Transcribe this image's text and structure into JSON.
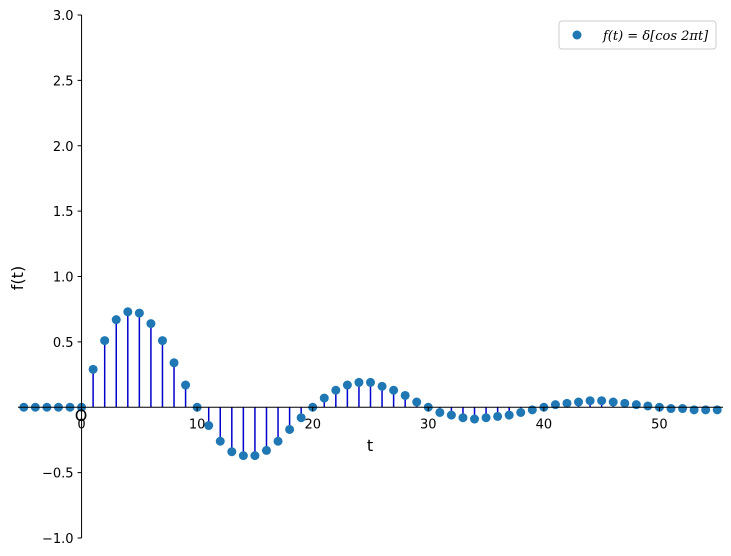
{
  "chart_data": {
    "type": "scatter",
    "xlabel": "t",
    "ylabel": "f(t)",
    "xlim": [
      -5.5,
      55.5
    ],
    "ylim": [
      -1.0,
      3.0
    ],
    "xticks": [
      0,
      10,
      20,
      30,
      40,
      50
    ],
    "yticks": [
      -1.0,
      -0.5,
      0.5,
      1.0,
      1.5,
      2.0,
      2.5,
      3.0
    ],
    "ytick_labels": [
      "−1.0",
      "−0.5",
      "0.5",
      "1.0",
      "1.5",
      "2.0",
      "2.5",
      "3.0"
    ],
    "origin_label": "O",
    "grid": false,
    "legend_position": "top-right",
    "series": [
      {
        "name": "f(t) = δ[cos 2πt]",
        "color": "#1f77b4",
        "stem_color": "#0000cc",
        "x": [
          -5,
          -4,
          -3,
          -2,
          -1,
          0,
          1,
          2,
          3,
          4,
          5,
          6,
          7,
          8,
          9,
          10,
          11,
          12,
          13,
          14,
          15,
          16,
          17,
          18,
          19,
          20,
          21,
          22,
          23,
          24,
          25,
          26,
          27,
          28,
          29,
          30,
          31,
          32,
          33,
          34,
          35,
          36,
          37,
          38,
          39,
          40,
          41,
          42,
          43,
          44,
          45,
          46,
          47,
          48,
          49,
          50,
          51,
          52,
          53,
          54,
          55
        ],
        "y": [
          0,
          0,
          0,
          0,
          0,
          0,
          0.29,
          0.51,
          0.67,
          0.73,
          0.72,
          0.64,
          0.51,
          0.34,
          0.17,
          0,
          -0.14,
          -0.26,
          -0.34,
          -0.37,
          -0.37,
          -0.33,
          -0.26,
          -0.17,
          -0.08,
          0,
          0.07,
          0.13,
          0.17,
          0.19,
          0.19,
          0.16,
          0.13,
          0.09,
          0.04,
          0,
          -0.04,
          -0.06,
          -0.08,
          -0.09,
          -0.08,
          -0.07,
          -0.06,
          -0.04,
          -0.02,
          0,
          0.02,
          0.03,
          0.04,
          0.05,
          0.05,
          0.04,
          0.03,
          0.02,
          0.01,
          0,
          -0.01,
          -0.01,
          -0.02,
          -0.02,
          -0.02
        ]
      }
    ]
  }
}
